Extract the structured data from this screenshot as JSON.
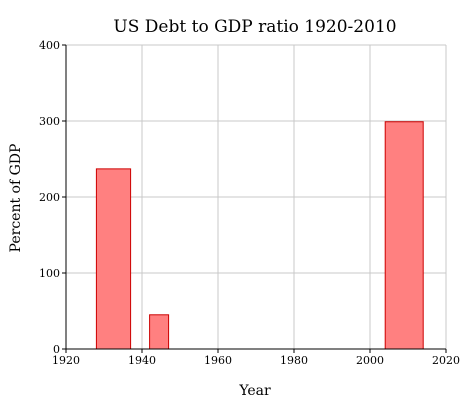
{
  "chart_data": {
    "type": "bar",
    "title": "US Debt to GDP ratio 1920-2010",
    "xlabel": "Year",
    "ylabel": "Percent of GDP",
    "xlim": [
      1920,
      2020
    ],
    "ylim": [
      0,
      400
    ],
    "xticks": [
      "1920",
      "1940",
      "1960",
      "1980",
      "2000",
      "2020"
    ],
    "yticks": [
      "0",
      "100",
      "200",
      "300",
      "400"
    ],
    "grid": true,
    "bar_color": "#ff8080",
    "bar_edge_color": "#cc0000",
    "bars": [
      {
        "x_start": 1928,
        "x_end": 1937,
        "value": 237
      },
      {
        "x_start": 1942,
        "x_end": 1947,
        "value": 45
      },
      {
        "x_start": 2004,
        "x_end": 2014,
        "value": 299
      }
    ]
  }
}
